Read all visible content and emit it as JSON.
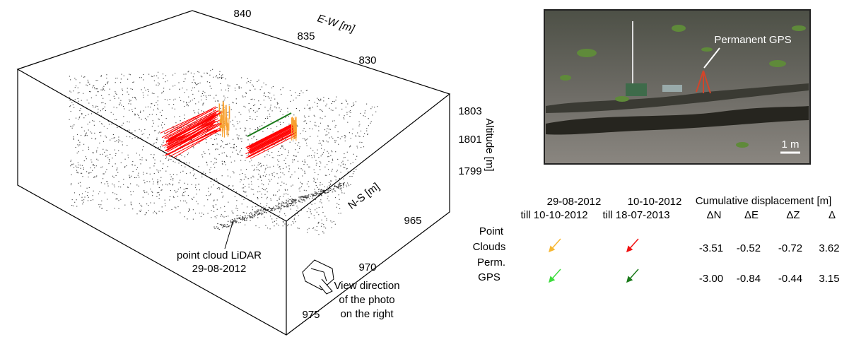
{
  "plot": {
    "axes": {
      "ew": {
        "label": "E-W [m]",
        "ticks": [
          840,
          835,
          830
        ]
      },
      "altitude": {
        "label": "Altitude [m]",
        "ticks": [
          1803,
          1801,
          1799
        ]
      },
      "ns": {
        "label": "N-S [m]",
        "ticks": [
          965,
          970,
          975
        ]
      }
    },
    "annotations": {
      "lidar": [
        "point cloud LiDAR",
        "29-08-2012"
      ],
      "view": [
        "View direction",
        "of the  photo",
        "on the right"
      ]
    }
  },
  "photo": {
    "label": "Permanent GPS",
    "scale": "1 m"
  },
  "table": {
    "periods": [
      [
        "29-08-2012",
        "till 10-10-2012"
      ],
      [
        "10-10-2012",
        "till 18-07-2013"
      ]
    ],
    "title": "Cumulative displacement [m]",
    "columns": [
      "ΔN",
      "ΔE",
      "ΔZ",
      "Δ"
    ],
    "rows": [
      {
        "label": [
          "Point",
          "Clouds"
        ],
        "values": [
          "-3.51",
          "-0.52",
          "-0.72",
          "3.62"
        ]
      },
      {
        "label": [
          "Perm.",
          "GPS"
        ],
        "values": [
          "-3.00",
          "-0.84",
          "-0.44",
          "3.15"
        ]
      }
    ]
  }
}
